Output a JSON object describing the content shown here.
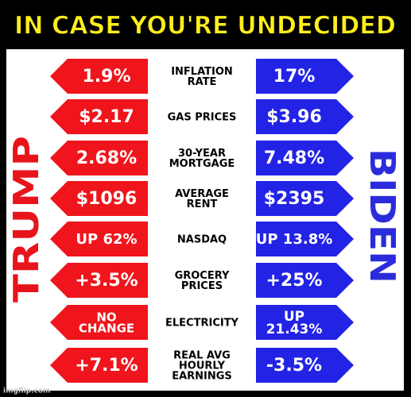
{
  "title": "IN CASE YOU'RE UNDECIDED",
  "left_name": "TRUMP",
  "right_name": "BIDEN",
  "rows": [
    {
      "label": [
        "INFLATION",
        "RATE"
      ],
      "left": [
        "1.9%"
      ],
      "right": [
        "17%"
      ]
    },
    {
      "label": [
        "GAS PRICES"
      ],
      "left": [
        "$2.17"
      ],
      "right": [
        "$3.96"
      ]
    },
    {
      "label": [
        "30-YEAR",
        "MORTGAGE"
      ],
      "left": [
        "2.68%"
      ],
      "right": [
        "7.48%"
      ]
    },
    {
      "label": [
        "AVERAGE",
        "RENT"
      ],
      "left": [
        "$1096"
      ],
      "right": [
        "$2395"
      ]
    },
    {
      "label": [
        "NASDAQ"
      ],
      "left": [
        "UP 62%"
      ],
      "right": [
        "UP 13.8%"
      ]
    },
    {
      "label": [
        "GROCERY",
        "PRICES"
      ],
      "left": [
        "+3.5%"
      ],
      "right": [
        "+25%"
      ]
    },
    {
      "label": [
        "ELECTRICITY"
      ],
      "left": [
        "NO",
        "CHANGE"
      ],
      "right": [
        "UP",
        "21.43%"
      ]
    },
    {
      "label": [
        "REAL AVG",
        "HOURLY",
        "EARNINGS"
      ],
      "left": [
        "+7.1%"
      ],
      "right": [
        "-3.5%"
      ]
    }
  ],
  "watermark": "imgflip.com"
}
